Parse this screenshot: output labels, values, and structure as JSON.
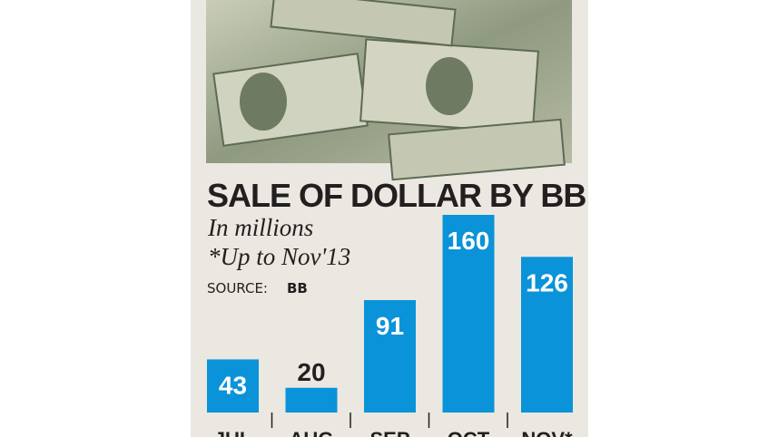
{
  "chart_data": {
    "type": "bar",
    "title": "SALE OF DOLLAR BY BB",
    "subtitle": "In millions",
    "note": "*Up to Nov'13",
    "source_label": "SOURCE:",
    "source": "BB",
    "categories": [
      "JUL",
      "AUG",
      "SEP",
      "OCT",
      "NOV*"
    ],
    "values": [
      43,
      20,
      91,
      160,
      126
    ],
    "color": "#0a93d8"
  }
}
